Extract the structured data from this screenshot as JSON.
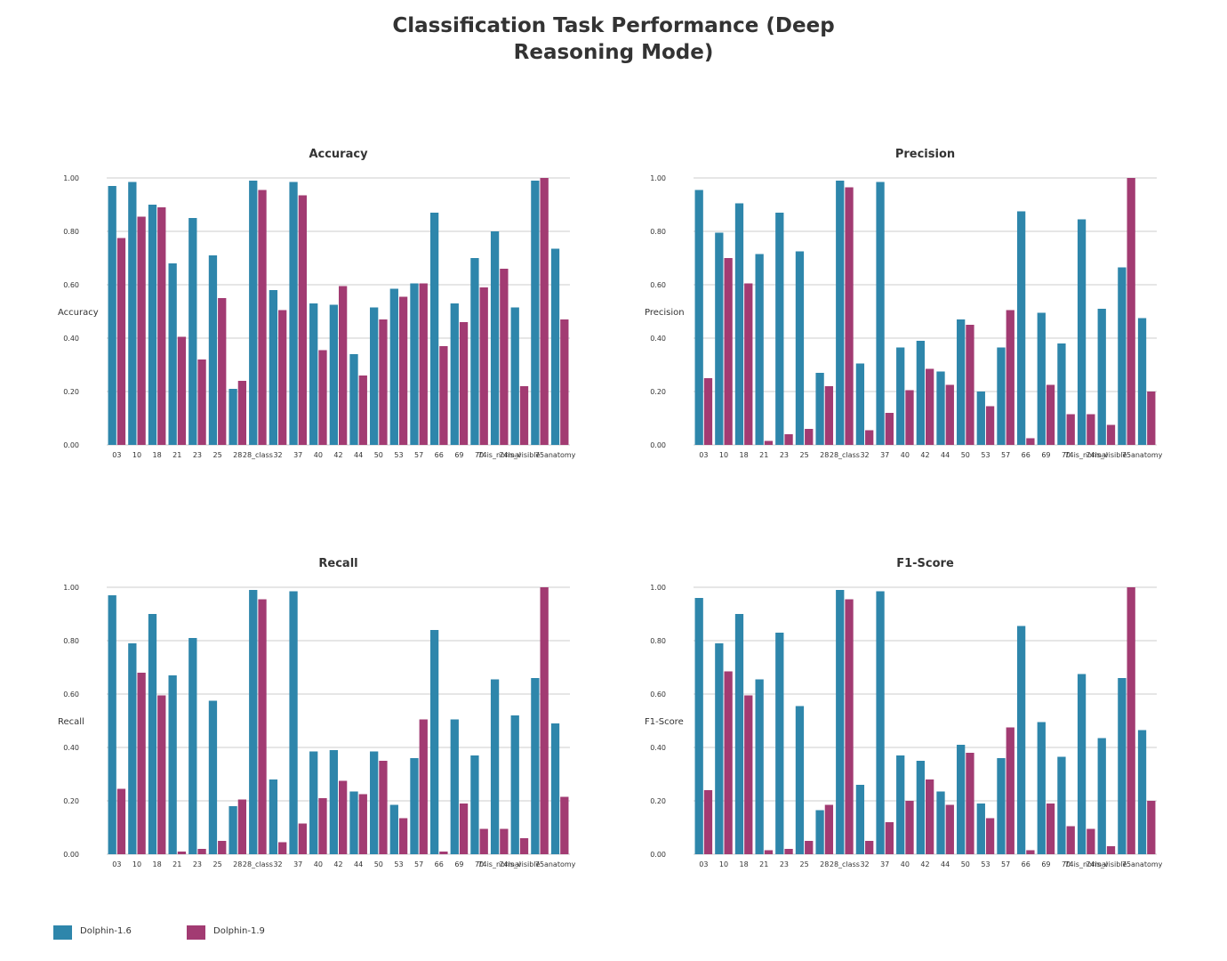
{
  "title_line1": "Classification Task Performance (Deep",
  "title_line2": "Reasoning Mode)",
  "colors": {
    "series_a": "#2e86ab",
    "series_b": "#a23b72"
  },
  "legend": [
    {
      "label": "Dolphin-1.6",
      "color": "#2e86ab"
    },
    {
      "label": "Dolphin-1.9",
      "color": "#a23b72"
    }
  ],
  "chart_data": [
    {
      "type": "bar",
      "title": "Accuracy",
      "ylabel": "Accuracy",
      "ylim": [
        0,
        1
      ],
      "yticks": [
        "0.00",
        "0.20",
        "0.40",
        "0.60",
        "0.80",
        "1.00"
      ],
      "grid": true,
      "categories": [
        "03",
        "10",
        "18",
        "21",
        "23",
        "25",
        "28",
        "28_class",
        "32",
        "37",
        "40",
        "42",
        "44",
        "50",
        "53",
        "57",
        "66",
        "69",
        "70",
        "74is_normal",
        "74is_visible",
        "75",
        "anatomy"
      ],
      "series": [
        {
          "name": "Dolphin-1.6",
          "values": [
            0.97,
            0.985,
            0.9,
            0.68,
            0.85,
            0.71,
            0.21,
            0.99,
            0.58,
            0.985,
            0.53,
            0.525,
            0.34,
            0.515,
            0.585,
            0.605,
            0.87,
            0.53,
            0.7,
            0.8,
            0.515,
            0.99,
            0.735
          ]
        },
        {
          "name": "Dolphin-1.9",
          "values": [
            0.775,
            0.855,
            0.89,
            0.405,
            0.32,
            0.55,
            0.24,
            0.955,
            0.505,
            0.935,
            0.355,
            0.595,
            0.26,
            0.47,
            0.555,
            0.605,
            0.37,
            0.46,
            0.59,
            0.66,
            0.22,
            1.0,
            0.47
          ]
        }
      ]
    },
    {
      "type": "bar",
      "title": "Precision",
      "ylabel": "Precision",
      "ylim": [
        0,
        1
      ],
      "yticks": [
        "0.00",
        "0.20",
        "0.40",
        "0.60",
        "0.80",
        "1.00"
      ],
      "grid": true,
      "categories": [
        "03",
        "10",
        "18",
        "21",
        "23",
        "25",
        "28",
        "28_class",
        "32",
        "37",
        "40",
        "42",
        "44",
        "50",
        "53",
        "57",
        "66",
        "69",
        "70",
        "74is_normal",
        "74is_visible",
        "75",
        "anatomy"
      ],
      "series": [
        {
          "name": "Dolphin-1.6",
          "values": [
            0.955,
            0.795,
            0.905,
            0.715,
            0.87,
            0.725,
            0.27,
            0.99,
            0.305,
            0.985,
            0.365,
            0.39,
            0.275,
            0.47,
            0.2,
            0.365,
            0.875,
            0.495,
            0.38,
            0.845,
            0.51,
            0.665,
            0.475
          ]
        },
        {
          "name": "Dolphin-1.9",
          "values": [
            0.25,
            0.7,
            0.605,
            0.015,
            0.04,
            0.06,
            0.22,
            0.965,
            0.055,
            0.12,
            0.205,
            0.285,
            0.225,
            0.45,
            0.145,
            0.505,
            0.025,
            0.225,
            0.115,
            0.115,
            0.075,
            1.0,
            0.2
          ]
        }
      ]
    },
    {
      "type": "bar",
      "title": "Recall",
      "ylabel": "Recall",
      "ylim": [
        0,
        1
      ],
      "yticks": [
        "0.00",
        "0.20",
        "0.40",
        "0.60",
        "0.80",
        "1.00"
      ],
      "grid": true,
      "categories": [
        "03",
        "10",
        "18",
        "21",
        "23",
        "25",
        "28",
        "28_class",
        "32",
        "37",
        "40",
        "42",
        "44",
        "50",
        "53",
        "57",
        "66",
        "69",
        "70",
        "74is_normal",
        "74is_visible",
        "75",
        "anatomy"
      ],
      "series": [
        {
          "name": "Dolphin-1.6",
          "values": [
            0.97,
            0.79,
            0.9,
            0.67,
            0.81,
            0.575,
            0.18,
            0.99,
            0.28,
            0.985,
            0.385,
            0.39,
            0.235,
            0.385,
            0.185,
            0.36,
            0.84,
            0.505,
            0.37,
            0.655,
            0.52,
            0.66,
            0.49
          ]
        },
        {
          "name": "Dolphin-1.9",
          "values": [
            0.245,
            0.68,
            0.595,
            0.01,
            0.02,
            0.05,
            0.205,
            0.955,
            0.045,
            0.115,
            0.21,
            0.275,
            0.225,
            0.35,
            0.135,
            0.505,
            0.01,
            0.19,
            0.095,
            0.095,
            0.06,
            1.0,
            0.215
          ]
        }
      ]
    },
    {
      "type": "bar",
      "title": "F1-Score",
      "ylabel": "F1-Score",
      "ylim": [
        0,
        1
      ],
      "yticks": [
        "0.00",
        "0.20",
        "0.40",
        "0.60",
        "0.80",
        "1.00"
      ],
      "grid": true,
      "categories": [
        "03",
        "10",
        "18",
        "21",
        "23",
        "25",
        "28",
        "28_class",
        "32",
        "37",
        "40",
        "42",
        "44",
        "50",
        "53",
        "57",
        "66",
        "69",
        "70",
        "74is_normal",
        "74is_visible",
        "75",
        "anatomy"
      ],
      "series": [
        {
          "name": "Dolphin-1.6",
          "values": [
            0.96,
            0.79,
            0.9,
            0.655,
            0.83,
            0.555,
            0.165,
            0.99,
            0.26,
            0.985,
            0.37,
            0.35,
            0.235,
            0.41,
            0.19,
            0.36,
            0.855,
            0.495,
            0.365,
            0.675,
            0.435,
            0.66,
            0.465
          ]
        },
        {
          "name": "Dolphin-1.9",
          "values": [
            0.24,
            0.685,
            0.595,
            0.015,
            0.02,
            0.05,
            0.185,
            0.955,
            0.05,
            0.12,
            0.2,
            0.28,
            0.185,
            0.38,
            0.135,
            0.475,
            0.015,
            0.19,
            0.105,
            0.095,
            0.03,
            1.0,
            0.2
          ]
        }
      ]
    }
  ]
}
